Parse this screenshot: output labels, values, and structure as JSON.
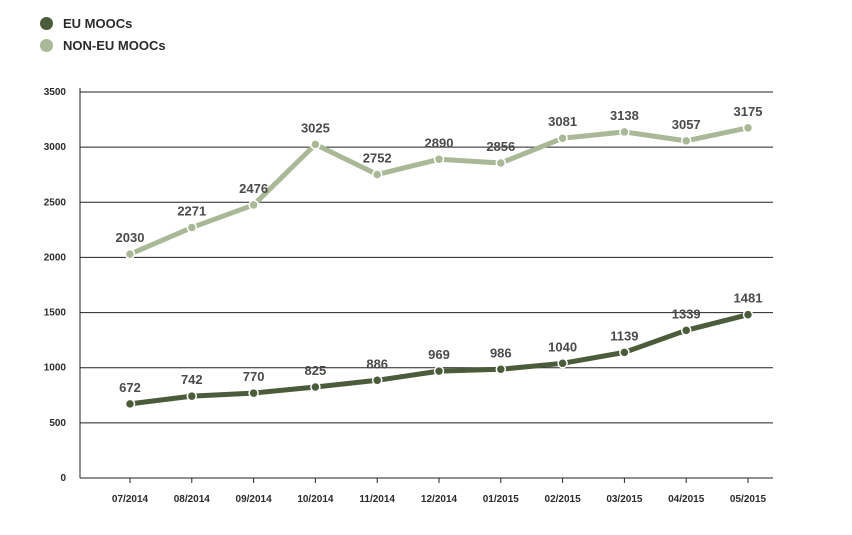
{
  "chart_data": {
    "type": "line",
    "categories": [
      "07/2014",
      "08/2014",
      "09/2014",
      "10/2014",
      "11/2014",
      "12/2014",
      "01/2015",
      "02/2015",
      "03/2015",
      "04/2015",
      "05/2015"
    ],
    "series": [
      {
        "name": "EU MOOCs",
        "color": "#4a5c3a",
        "values": [
          672,
          742,
          770,
          825,
          886,
          969,
          986,
          1040,
          1139,
          1339,
          1481
        ]
      },
      {
        "name": "NON-EU MOOCs",
        "color": "#a9b896",
        "values": [
          2030,
          2271,
          2476,
          3025,
          2752,
          2890,
          2856,
          3081,
          3138,
          3057,
          3175
        ]
      }
    ],
    "ylim": [
      0,
      3500
    ],
    "yticks": [
      0,
      500,
      1000,
      1500,
      2000,
      2500,
      3000,
      3500
    ],
    "grid": true,
    "legend": "top-left"
  }
}
